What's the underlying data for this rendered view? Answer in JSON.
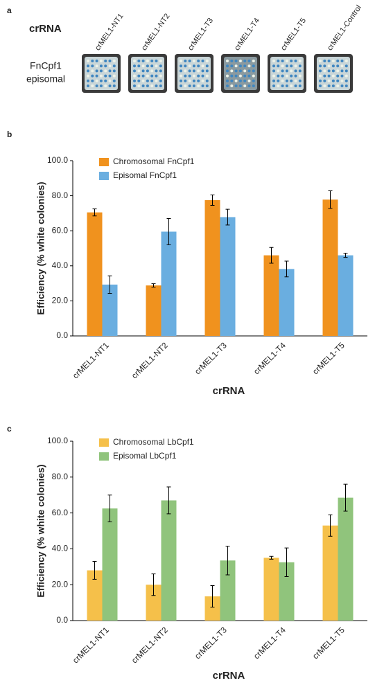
{
  "panel_a": {
    "label": "a",
    "row_label": "crRNA",
    "plate_label_1": "FnCpf1",
    "plate_label_2": "episomal",
    "col_labels": [
      "crMEL1-NT1",
      "crMEL1-NT2",
      "crMEL1-T3",
      "crMEL1-T4",
      "crMEL1-T5",
      "crMEL1-Control"
    ]
  },
  "chart_data": [
    {
      "type": "bar",
      "panel": "b",
      "y_label": "Efficiency (% white colonies)",
      "x_label": "crRNA",
      "categories": [
        "crMEL1-NT1",
        "crMEL1-NT2",
        "crMEL1-T3",
        "crMEL1-T4",
        "crMEL1-T5"
      ],
      "series": [
        {
          "name": "Chromosomal FnCpf1",
          "color": "#f0921e",
          "values": [
            70.5,
            28.8,
            77.5,
            46,
            77.8
          ],
          "errors": [
            2,
            1,
            3,
            4.5,
            5
          ]
        },
        {
          "name": "Episomal FnCpf1",
          "color": "#6aaee0",
          "values": [
            29.3,
            59.5,
            67.8,
            38.2,
            46
          ],
          "errors": [
            5,
            7.5,
            4.5,
            4.5,
            1.2
          ]
        }
      ],
      "ylim": [
        0,
        100
      ],
      "yticks": [
        {
          "value": 0,
          "label": "0.0"
        },
        {
          "value": 20,
          "label": "20.0"
        },
        {
          "value": 40,
          "label": "40.0"
        },
        {
          "value": 60,
          "label": "60.0"
        },
        {
          "value": 80,
          "label": "80.0"
        },
        {
          "value": 100,
          "label": "100.0"
        }
      ],
      "legend": "upper left"
    },
    {
      "type": "bar",
      "panel": "c",
      "y_label": "Efficiency (% white colonies)",
      "x_label": "crRNA",
      "categories": [
        "crMEL1-NT1",
        "crMEL1-NT2",
        "crMEL1-T3",
        "crMEL1-T4",
        "crMEL1-T5"
      ],
      "series": [
        {
          "name": "Chromosomal LbCpf1",
          "color": "#f5c04a",
          "values": [
            28,
            20,
            13.5,
            35,
            53
          ],
          "errors": [
            5,
            6,
            6,
            0.8,
            6
          ]
        },
        {
          "name": "Episomal LbCpf1",
          "color": "#90c47c",
          "values": [
            62.5,
            67,
            33.5,
            32.5,
            68.5
          ],
          "errors": [
            7.5,
            7.5,
            8,
            8,
            7.5
          ]
        }
      ],
      "ylim": [
        0,
        100
      ],
      "yticks": [
        {
          "value": 0,
          "label": "0.0"
        },
        {
          "value": 20,
          "label": "20.0"
        },
        {
          "value": 40,
          "label": "40.0"
        },
        {
          "value": 60,
          "label": "60.0"
        },
        {
          "value": 80,
          "label": "80.0"
        },
        {
          "value": 100,
          "label": "100.0"
        }
      ],
      "legend": "upper left"
    }
  ]
}
